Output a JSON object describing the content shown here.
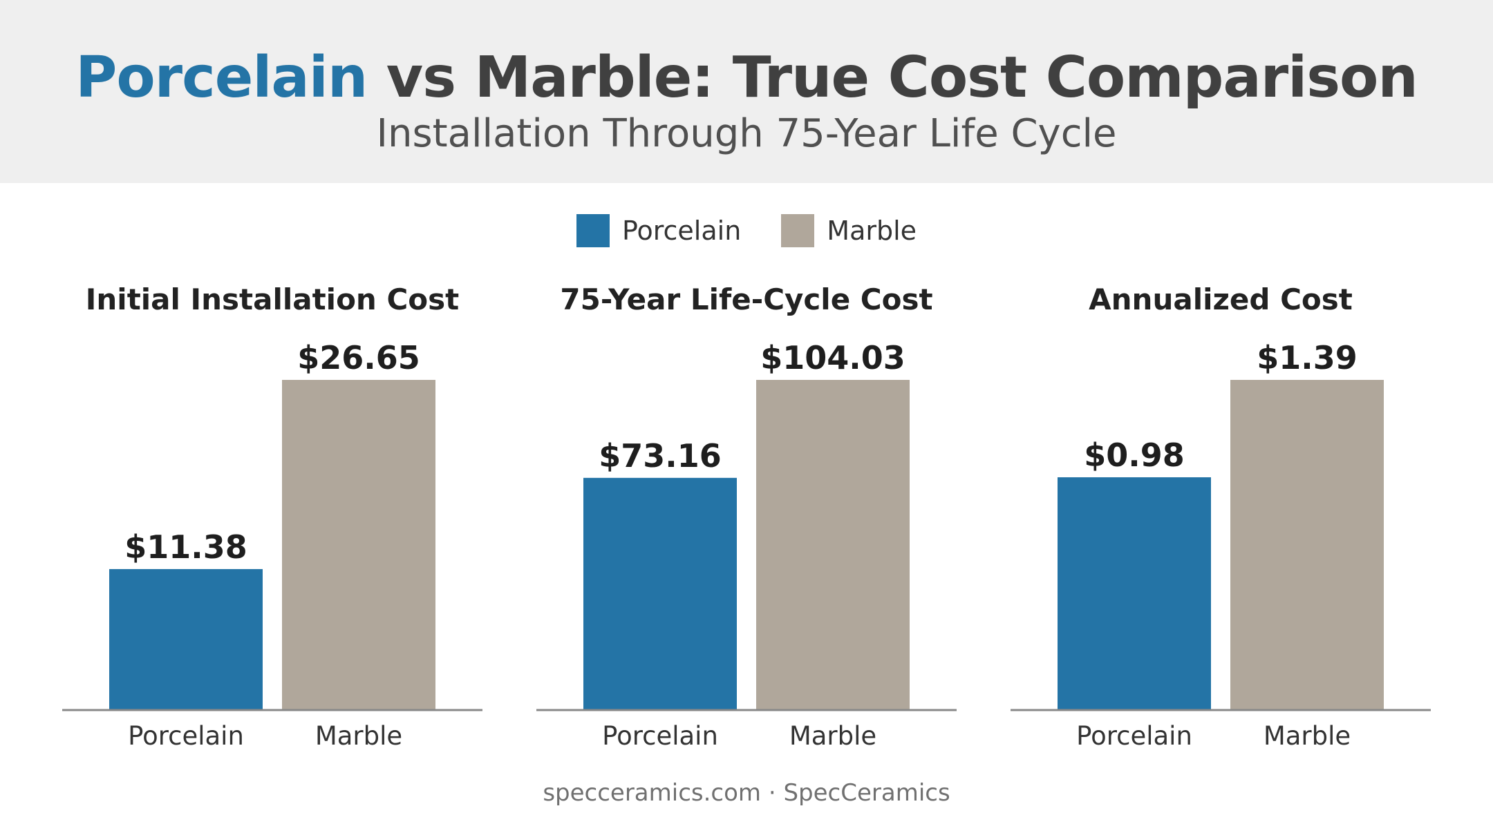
{
  "header": {
    "title_highlight": "Porcelain",
    "title_rest": " vs Marble: True Cost Comparison",
    "subtitle": "Installation Through 75-Year Life Cycle"
  },
  "legend": [
    {
      "label": "Porcelain",
      "color": "#2474a6"
    },
    {
      "label": "Marble",
      "color": "#b0a79b"
    }
  ],
  "colors": {
    "porcelain": "#2474a6",
    "marble": "#b0a79b",
    "title_accent": "#2474a6",
    "axis": "#888888"
  },
  "chart_data": [
    {
      "type": "bar",
      "title": "Initial Installation Cost",
      "categories": [
        "Porcelain",
        "Marble"
      ],
      "values": [
        11.38,
        26.65
      ],
      "labels": [
        "$11.38",
        "$26.65"
      ]
    },
    {
      "type": "bar",
      "title": "75-Year Life-Cycle Cost",
      "categories": [
        "Porcelain",
        "Marble"
      ],
      "values": [
        73.16,
        104.03
      ],
      "labels": [
        "$73.16",
        "$104.03"
      ]
    },
    {
      "type": "bar",
      "title": "Annualized Cost",
      "categories": [
        "Porcelain",
        "Marble"
      ],
      "values": [
        0.98,
        1.39
      ],
      "labels": [
        "$0.98",
        "$1.39"
      ]
    }
  ],
  "footer": {
    "text": "specceramics.com · SpecCeramics"
  }
}
